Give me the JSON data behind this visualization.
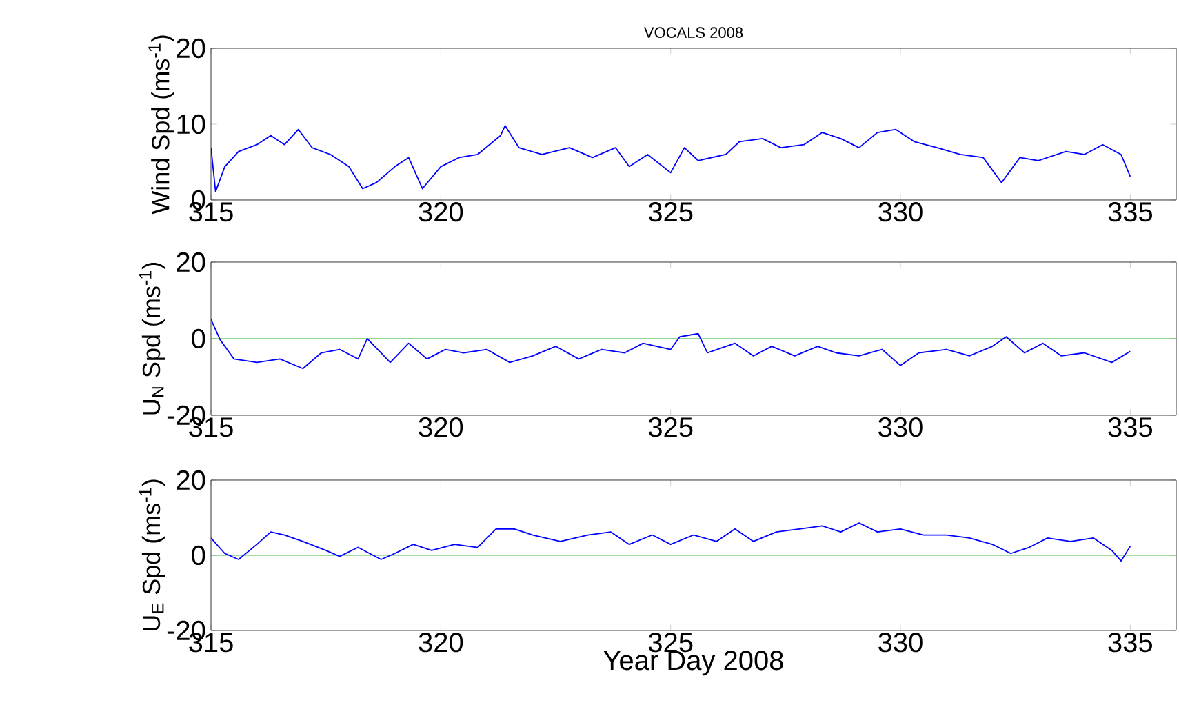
{
  "chart_data": [
    {
      "type": "line",
      "title": "VOCALS 2008",
      "ylabel": "Wind Spd (ms$^{-1}$)",
      "xlim": [
        315,
        336
      ],
      "xticks": [
        315,
        320,
        325,
        330,
        335
      ],
      "ylim": [
        0,
        20
      ],
      "yticks": [
        0,
        10,
        20
      ],
      "series": [
        {
          "color": "#0000ff",
          "x": [
            315.0,
            315.1,
            315.3,
            315.6,
            316.0,
            316.3,
            316.6,
            316.9,
            317.2,
            317.6,
            318.0,
            318.3,
            318.6,
            319.0,
            319.3,
            319.6,
            320.0,
            320.4,
            320.8,
            321.3,
            321.4,
            321.7,
            322.2,
            322.8,
            323.3,
            323.8,
            324.1,
            324.5,
            325.0,
            325.3,
            325.6,
            326.2,
            326.5,
            327.0,
            327.4,
            327.9,
            328.3,
            328.7,
            329.1,
            329.5,
            329.9,
            330.3,
            330.8,
            331.3,
            331.8,
            332.2,
            332.6,
            333.0,
            333.6,
            334.0,
            334.4,
            334.8,
            335.0
          ],
          "values": [
            6.9,
            1.1,
            4.4,
            6.4,
            7.3,
            8.5,
            7.3,
            9.3,
            6.9,
            6.0,
            4.4,
            1.5,
            2.3,
            4.4,
            5.6,
            1.5,
            4.4,
            5.6,
            6.0,
            8.5,
            9.8,
            6.9,
            6.0,
            6.9,
            5.6,
            6.9,
            4.4,
            6.0,
            3.6,
            6.9,
            5.2,
            6.0,
            7.7,
            8.1,
            6.9,
            7.3,
            8.9,
            8.1,
            6.9,
            8.9,
            9.3,
            7.7,
            6.9,
            6.0,
            5.6,
            2.3,
            5.6,
            5.2,
            6.4,
            6.0,
            7.3,
            6.0,
            3.1
          ]
        }
      ]
    },
    {
      "type": "line",
      "ylabel": "U$_{N}$ Spd (ms$^{-1}$)",
      "xlim": [
        315,
        336
      ],
      "xticks": [
        315,
        320,
        325,
        330,
        335
      ],
      "ylim": [
        -20,
        20
      ],
      "yticks": [
        -20,
        0,
        20
      ],
      "ref_lines": [
        {
          "axis": "y",
          "value": 0,
          "color": "#00a000"
        }
      ],
      "series": [
        {
          "color": "#0000ff",
          "x": [
            315.0,
            315.2,
            315.5,
            316.0,
            316.5,
            317.0,
            317.4,
            317.8,
            318.2,
            318.4,
            318.9,
            319.3,
            319.7,
            320.1,
            320.5,
            321.0,
            321.5,
            322.0,
            322.5,
            323.0,
            323.5,
            324.0,
            324.4,
            325.0,
            325.2,
            325.6,
            325.8,
            326.4,
            326.8,
            327.2,
            327.7,
            328.2,
            328.6,
            329.1,
            329.6,
            330.0,
            330.4,
            331.0,
            331.5,
            332.0,
            332.3,
            332.7,
            333.1,
            333.5,
            334.0,
            334.6,
            335.0
          ],
          "values": [
            5,
            -0.3,
            -5.3,
            -6.2,
            -5.3,
            -7.8,
            -3.7,
            -2.8,
            -5.3,
            0,
            -6.2,
            -1.2,
            -5.3,
            -2.8,
            -3.7,
            -2.8,
            -6.2,
            -4.5,
            -2,
            -5.3,
            -2.8,
            -3.7,
            -1.2,
            -2.8,
            0.5,
            1.3,
            -3.7,
            -1.2,
            -4.5,
            -2,
            -4.5,
            -2,
            -3.7,
            -4.5,
            -2.8,
            -7,
            -3.7,
            -2.8,
            -4.5,
            -2,
            0.5,
            -3.7,
            -1.2,
            -4.5,
            -3.7,
            -6.2,
            -3.3
          ]
        }
      ]
    },
    {
      "type": "line",
      "xlabel": "Year Day 2008",
      "ylabel": "U$_{E}$ Spd (ms$^{-1}$)",
      "xlim": [
        315,
        336
      ],
      "xticks": [
        315,
        320,
        325,
        330,
        335
      ],
      "ylim": [
        -20,
        20
      ],
      "yticks": [
        -20,
        0,
        20
      ],
      "ref_lines": [
        {
          "axis": "y",
          "value": 0,
          "color": "#00a000"
        }
      ],
      "series": [
        {
          "color": "#0000ff",
          "x": [
            315.0,
            315.3,
            315.6,
            316.0,
            316.3,
            316.6,
            317.0,
            317.5,
            317.8,
            318.2,
            318.7,
            319.0,
            319.4,
            319.8,
            320.3,
            320.8,
            321.2,
            321.6,
            322.0,
            322.6,
            323.2,
            323.7,
            324.1,
            324.6,
            325.0,
            325.5,
            326.0,
            326.4,
            326.8,
            327.3,
            327.8,
            328.3,
            328.7,
            329.1,
            329.5,
            330.0,
            330.5,
            331.0,
            331.5,
            332.0,
            332.4,
            332.8,
            333.2,
            333.7,
            334.2,
            334.6,
            334.8,
            335.0
          ],
          "values": [
            4.6,
            0.5,
            -1.1,
            2.9,
            6.2,
            5.4,
            3.7,
            1.3,
            -0.3,
            2.1,
            -1.1,
            0.5,
            2.9,
            1.3,
            2.9,
            2.1,
            7,
            7,
            5.4,
            3.7,
            5.4,
            6.2,
            2.9,
            5.4,
            2.9,
            5.4,
            3.7,
            7,
            3.7,
            6.2,
            7,
            7.8,
            6.2,
            8.6,
            6.2,
            7,
            5.4,
            5.4,
            4.6,
            2.9,
            0.5,
            2.1,
            4.6,
            3.7,
            4.6,
            1.3,
            -1.5,
            2.4
          ]
        }
      ]
    }
  ]
}
